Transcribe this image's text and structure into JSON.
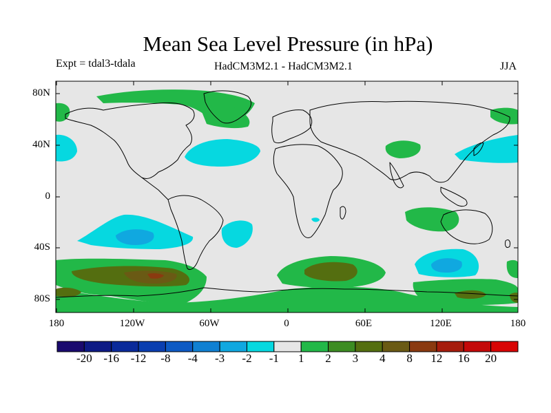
{
  "title": "Mean Sea Level Pressure (in hPa)",
  "experiment": "Expt = tdal3-tdala",
  "model": "HadCM3M2.1 - HadCM3M2.1",
  "season": "JJA",
  "axes": {
    "lat_labels": [
      "80N",
      "40N",
      "0",
      "40S",
      "80S"
    ],
    "lon_labels": [
      "180",
      "120W",
      "60W",
      "0",
      "60E",
      "120E",
      "180"
    ]
  },
  "colorbar": {
    "labels": [
      "-20",
      "-16",
      "-12",
      "-8",
      "-4",
      "-3",
      "-2",
      "-1",
      "1",
      "2",
      "3",
      "4",
      "8",
      "12",
      "16",
      "20"
    ],
    "colors": [
      "#1a0a6e",
      "#0d1a85",
      "#0a2a9a",
      "#0a3eb0",
      "#0d5ac4",
      "#1080d2",
      "#10a8e0",
      "#06d8e0",
      "#e6e6e6",
      "#22b848",
      "#3c8c22",
      "#546e10",
      "#6a5a14",
      "#8a3a10",
      "#a61c0c",
      "#c40808",
      "#d80404"
    ]
  },
  "chart_data": {
    "type": "contour_map",
    "variable": "Mean Sea Level Pressure difference (hPa)",
    "domain": {
      "lon_range": [
        -180,
        180
      ],
      "lat_range": [
        -90,
        90
      ]
    },
    "levels": [
      -20,
      -16,
      -12,
      -8,
      -4,
      -3,
      -2,
      -1,
      1,
      2,
      3,
      4,
      8,
      12,
      16,
      20
    ],
    "features": [
      {
        "region": "Greenland / North Atlantic high latitudes",
        "sign": "positive",
        "range": "1 to 3"
      },
      {
        "region": "North Atlantic mid-latitudes",
        "sign": "negative",
        "range": "-2 to -1"
      },
      {
        "region": "North Pacific (west)",
        "sign": "negative",
        "range": "-2 to -1"
      },
      {
        "region": "South Pacific (mid-latitudes)",
        "sign": "negative",
        "range": "-4 to -1"
      },
      {
        "region": "South Indian Ocean",
        "sign": "negative",
        "range": "-4 to -1"
      },
      {
        "region": "Southern Ocean",
        "sign": "positive",
        "range": "1 to 8"
      }
    ]
  }
}
